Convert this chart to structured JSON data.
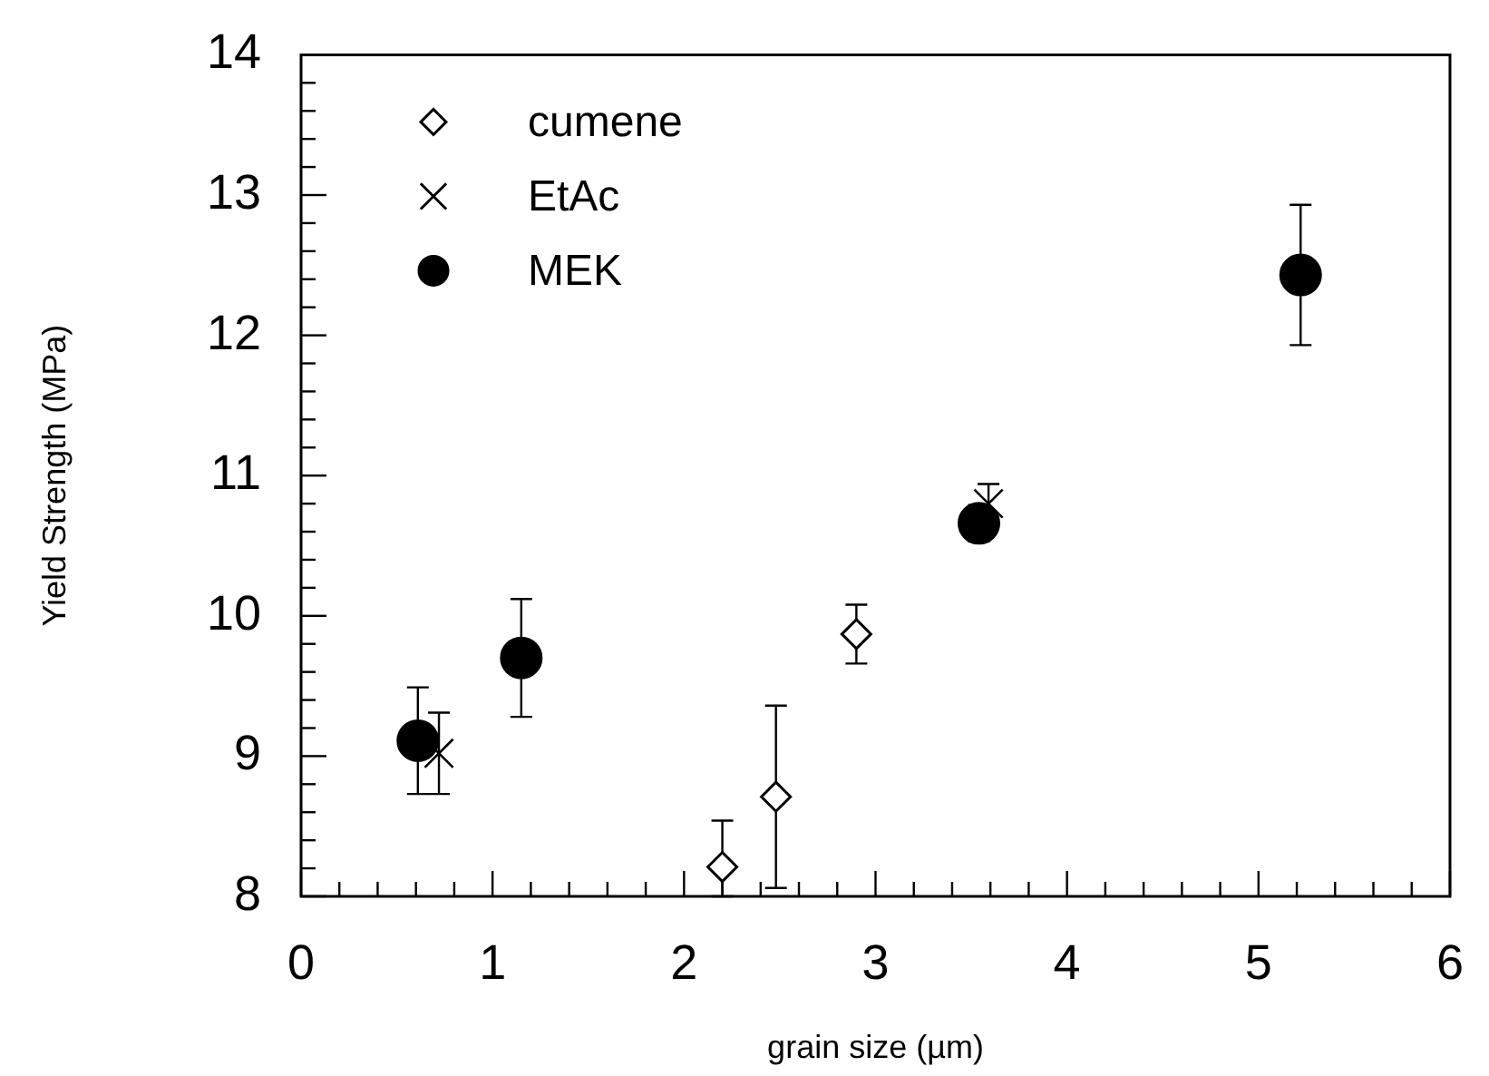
{
  "chart_data": {
    "type": "scatter",
    "xlabel": "grain size (µm)",
    "ylabel": "Yield Strength (MPa)",
    "xlim": [
      0,
      6
    ],
    "ylim": [
      8,
      14
    ],
    "xticks": [
      0,
      {
        "value": 0.2,
        "label": null
      },
      {
        "value": 0.4,
        "label": null
      },
      {
        "value": 0.6,
        "label": null
      },
      {
        "value": 0.8,
        "label": null
      },
      1,
      {
        "value": 1.2,
        "label": null
      },
      {
        "value": 1.4,
        "label": null
      },
      {
        "value": 1.6,
        "label": null
      },
      {
        "value": 1.8,
        "label": null
      },
      2,
      {
        "value": 2.2,
        "label": null
      },
      {
        "value": 2.4,
        "label": null
      },
      {
        "value": 2.6,
        "label": null
      },
      {
        "value": 2.8,
        "label": null
      },
      3,
      {
        "value": 3.2,
        "label": null
      },
      {
        "value": 3.4,
        "label": null
      },
      {
        "value": 3.6,
        "label": null
      },
      {
        "value": 3.8,
        "label": null
      },
      4,
      {
        "value": 4.2,
        "label": null
      },
      {
        "value": 4.4,
        "label": null
      },
      {
        "value": 4.6,
        "label": null
      },
      {
        "value": 4.8,
        "label": null
      },
      5,
      {
        "value": 5.2,
        "label": null
      },
      {
        "value": 5.4,
        "label": null
      },
      {
        "value": 5.6,
        "label": null
      },
      {
        "value": 5.8,
        "label": null
      },
      6
    ],
    "yticks": [
      8,
      {
        "value": 8.2,
        "label": null
      },
      {
        "value": 8.4,
        "label": null
      },
      {
        "value": 8.6,
        "label": null
      },
      {
        "value": 8.8,
        "label": null
      },
      9,
      {
        "value": 9.2,
        "label": null
      },
      {
        "value": 9.4,
        "label": null
      },
      {
        "value": 9.6,
        "label": null
      },
      {
        "value": 9.8,
        "label": null
      },
      10,
      {
        "value": 10.2,
        "label": null
      },
      {
        "value": 10.4,
        "label": null
      },
      {
        "value": 10.6,
        "label": null
      },
      {
        "value": 10.8,
        "label": null
      },
      11,
      {
        "value": 11.2,
        "label": null
      },
      {
        "value": 11.4,
        "label": null
      },
      {
        "value": 11.6,
        "label": null
      },
      {
        "value": 11.8,
        "label": null
      },
      12,
      {
        "value": 12.2,
        "label": null
      },
      {
        "value": 12.4,
        "label": null
      },
      {
        "value": 12.6,
        "label": null
      },
      {
        "value": 12.8,
        "label": null
      },
      13,
      {
        "value": 13.2,
        "label": null
      },
      {
        "value": 13.4,
        "label": null
      },
      {
        "value": 13.6,
        "label": null
      },
      {
        "value": 13.8,
        "label": null
      },
      14
    ],
    "grid": false,
    "legend": "top left",
    "series": [
      {
        "name": "cumene",
        "color": "#000000",
        "marker": "diamond",
        "x": [
          2.2,
          2.48,
          2.9
        ],
        "values": [
          8.21,
          8.71,
          9.87
        ],
        "errors": [
          [
            8.0,
            8.54
          ],
          0.65,
          0.21
        ]
      },
      {
        "name": "EtAc",
        "color": "#000000",
        "marker": "cross",
        "x": [
          0.72,
          3.59
        ],
        "values": [
          9.02,
          10.8
        ],
        "errors": [
          0.29,
          0.14
        ]
      },
      {
        "name": "MEK",
        "color": "#000000",
        "marker": "circle",
        "x": [
          0.61,
          1.15,
          3.54,
          5.22
        ],
        "values": [
          9.11,
          9.7,
          10.66,
          12.43
        ],
        "errors": [
          0.38,
          0.42,
          0.13,
          0.5
        ]
      }
    ]
  }
}
